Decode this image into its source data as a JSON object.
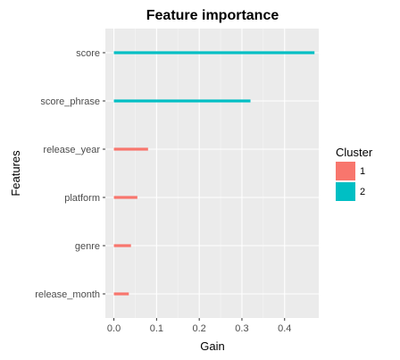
{
  "chart_data": {
    "type": "bar",
    "orientation": "horizontal",
    "title": "Feature importance",
    "xlabel": "Gain",
    "ylabel": "Features",
    "xlim": [
      -0.02,
      0.48
    ],
    "x_ticks": [
      0.0,
      0.1,
      0.2,
      0.3,
      0.4
    ],
    "x_tick_labels": [
      "0.0",
      "0.1",
      "0.2",
      "0.3",
      "0.4"
    ],
    "grid": true,
    "legend": {
      "title": "Cluster",
      "placement": "right",
      "entries": [
        {
          "label": "1",
          "color": "#F8766D"
        },
        {
          "label": "2",
          "color": "#00BFC4"
        }
      ]
    },
    "categories": [
      "score",
      "score_phrase",
      "release_year",
      "platform",
      "genre",
      "release_month"
    ],
    "values": [
      0.47,
      0.32,
      0.08,
      0.055,
      0.04,
      0.035
    ],
    "cluster": [
      "2",
      "2",
      "1",
      "1",
      "1",
      "1"
    ]
  },
  "colors": {
    "panel_background": "#EBEBEB",
    "grid_major": "#FFFFFF",
    "grid_minor": "#F5F5F5",
    "cluster_1": "#F8766D",
    "cluster_2": "#00BFC4"
  }
}
